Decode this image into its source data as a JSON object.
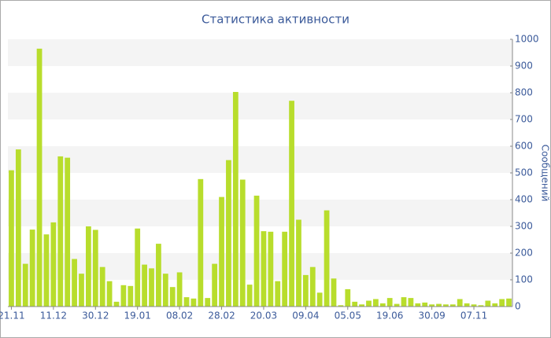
{
  "chart_data": {
    "type": "bar",
    "title": "Статистика активности",
    "y_label": "Сообщений",
    "categories": [
      "21.11",
      null,
      null,
      null,
      null,
      null,
      "11.12",
      null,
      null,
      null,
      null,
      null,
      "30.12",
      null,
      null,
      null,
      null,
      null,
      "19.01",
      null,
      null,
      null,
      null,
      null,
      "08.02",
      null,
      null,
      null,
      null,
      null,
      "28.02",
      null,
      null,
      null,
      null,
      null,
      "20.03",
      null,
      null,
      null,
      null,
      null,
      "09.04",
      null,
      null,
      null,
      null,
      null,
      "05.05",
      null,
      null,
      null,
      null,
      null,
      "19.06",
      null,
      null,
      null,
      null,
      null,
      "30.09",
      null,
      null,
      null,
      null,
      null,
      "07.11",
      null,
      null,
      null,
      null,
      null
    ],
    "values": [
      510,
      588,
      160,
      288,
      965,
      270,
      315,
      562,
      557,
      178,
      123,
      300,
      287,
      148,
      95,
      18,
      80,
      77,
      292,
      157,
      143,
      235,
      123,
      73,
      128,
      35,
      30,
      477,
      32,
      160,
      410,
      548,
      803,
      475,
      82,
      415,
      282,
      280,
      95,
      280,
      770,
      325,
      118,
      148,
      52,
      360,
      105,
      5,
      65,
      18,
      8,
      22,
      28,
      12,
      32,
      10,
      35,
      32,
      12,
      15,
      8,
      10,
      8,
      8,
      28,
      12,
      8,
      5,
      22,
      12,
      28,
      30
    ],
    "color": "#b8dd2c",
    "ylim": [
      0,
      1000
    ],
    "yticks": [
      0,
      100,
      200,
      300,
      400,
      500,
      600,
      700,
      800,
      900,
      1000
    ],
    "grid": true
  }
}
